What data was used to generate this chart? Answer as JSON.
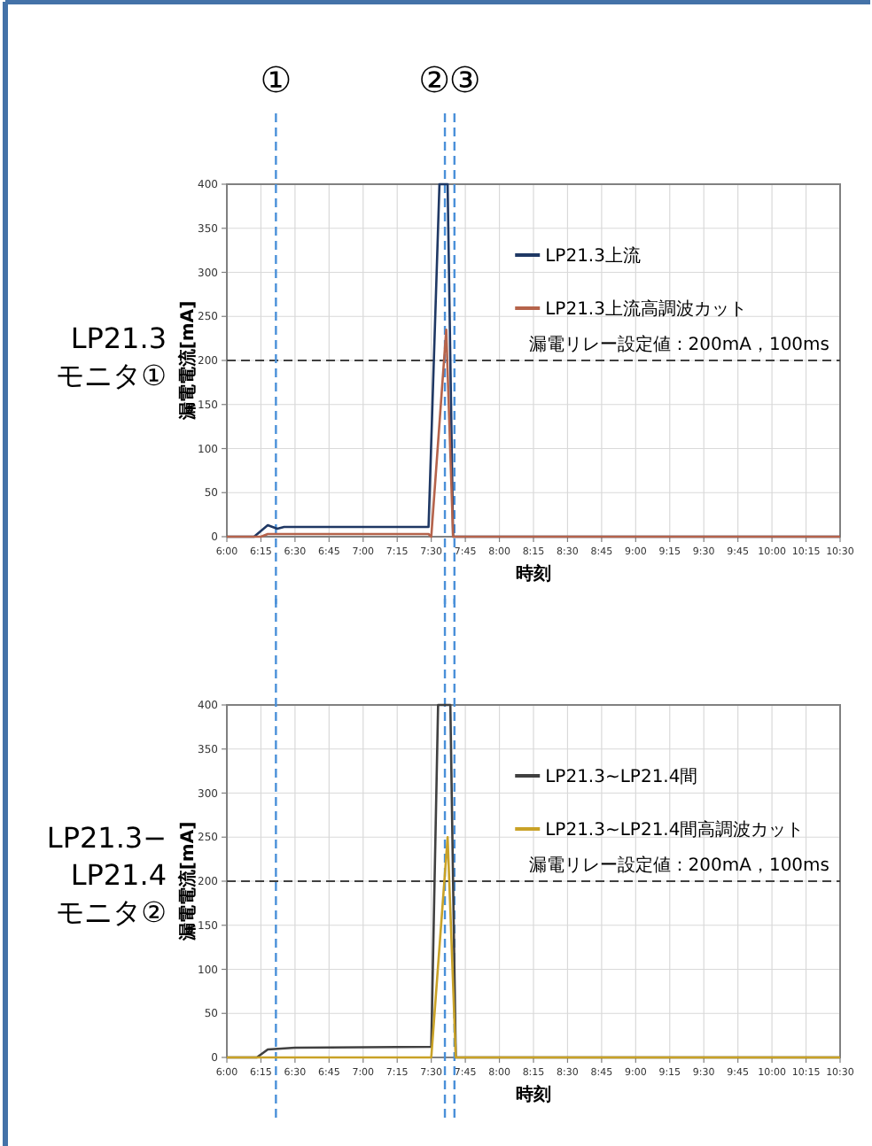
{
  "chart_data": [
    {
      "type": "line",
      "title": "LP21.3\nモニタ①",
      "xlabel": "時刻",
      "ylabel": "漏電電流[mA]",
      "xlim": [
        6,
        10.5
      ],
      "ylim": [
        0,
        400
      ],
      "xticks": [
        {
          "value": 6,
          "label": "6:00"
        },
        {
          "value": 6.25,
          "label": "6:15"
        },
        {
          "value": 6.5,
          "label": "6:30"
        },
        {
          "value": 6.75,
          "label": "6:45"
        },
        {
          "value": 7,
          "label": "7:00"
        },
        {
          "value": 7.25,
          "label": "7:15"
        },
        {
          "value": 7.5,
          "label": "7:30"
        },
        {
          "value": 7.75,
          "label": "7:45"
        },
        {
          "value": 8,
          "label": "8:00"
        },
        {
          "value": 8.25,
          "label": "8:15"
        },
        {
          "value": 8.5,
          "label": "8:30"
        },
        {
          "value": 8.75,
          "label": "8:45"
        },
        {
          "value": 9,
          "label": "9:00"
        },
        {
          "value": 9.25,
          "label": "9:15"
        },
        {
          "value": 9.5,
          "label": "9:30"
        },
        {
          "value": 9.75,
          "label": "9:45"
        },
        {
          "value": 10,
          "label": "10:00"
        },
        {
          "value": 10.25,
          "label": "10:15"
        },
        {
          "value": 10.5,
          "label": "10:30"
        }
      ],
      "yticks": [
        0,
        50,
        100,
        150,
        200,
        250,
        300,
        350,
        400
      ],
      "grid": true,
      "legend": "top right",
      "marker": "none",
      "line_style": "solid",
      "series": [
        {
          "name": "LP21.3上流",
          "color": "#1f3864",
          "x": [
            6,
            6.2,
            6.3,
            6.37,
            6.42,
            7.48,
            7.56,
            7.62,
            7.66,
            10.5
          ],
          "values": [
            0,
            0,
            13,
            9,
            11,
            11,
            400,
            400,
            0,
            0
          ]
        },
        {
          "name": "LP21.3上流高調波カット",
          "color": "#b5634b",
          "x": [
            6,
            6.25,
            6.3,
            7.48,
            7.5,
            7.61,
            7.66,
            10.5
          ],
          "values": [
            0,
            0,
            3,
            3,
            0,
            235,
            0,
            0
          ]
        }
      ],
      "ref_lines": [
        {
          "axis": "y",
          "value": 200,
          "label": "漏電リレー設定値：200mA，100ms",
          "color": "#404040",
          "line_style": "dashed"
        },
        {
          "axis": "x",
          "value": 6.36,
          "label": "①",
          "color": "#4a90d9",
          "line_style": "dashed"
        },
        {
          "axis": "x",
          "value": 7.6,
          "label": "②",
          "color": "#4a90d9",
          "line_style": "dashed"
        },
        {
          "axis": "x",
          "value": 7.67,
          "label": "③",
          "color": "#4a90d9",
          "line_style": "dashed"
        }
      ]
    },
    {
      "type": "line",
      "title": "LP21.3−\nLP21.4\nモニタ②",
      "xlabel": "時刻",
      "ylabel": "漏電電流[mA]",
      "xlim": [
        6,
        10.5
      ],
      "ylim": [
        0,
        400
      ],
      "xticks": [
        {
          "value": 6,
          "label": "6:00"
        },
        {
          "value": 6.25,
          "label": "6:15"
        },
        {
          "value": 6.5,
          "label": "6:30"
        },
        {
          "value": 6.75,
          "label": "6:45"
        },
        {
          "value": 7,
          "label": "7:00"
        },
        {
          "value": 7.25,
          "label": "7:15"
        },
        {
          "value": 7.5,
          "label": "7:30"
        },
        {
          "value": 7.75,
          "label": "7:45"
        },
        {
          "value": 8,
          "label": "8:00"
        },
        {
          "value": 8.25,
          "label": "8:15"
        },
        {
          "value": 8.5,
          "label": "8:30"
        },
        {
          "value": 8.75,
          "label": "8:45"
        },
        {
          "value": 9,
          "label": "9:00"
        },
        {
          "value": 9.25,
          "label": "9:15"
        },
        {
          "value": 9.5,
          "label": "9:30"
        },
        {
          "value": 9.75,
          "label": "9:45"
        },
        {
          "value": 10,
          "label": "10:00"
        },
        {
          "value": 10.25,
          "label": "10:15"
        },
        {
          "value": 10.5,
          "label": "10:30"
        }
      ],
      "yticks": [
        0,
        50,
        100,
        150,
        200,
        250,
        300,
        350,
        400
      ],
      "grid": true,
      "legend": "top right",
      "marker": "none",
      "line_style": "solid",
      "series": [
        {
          "name": "LP21.3~LP21.4間",
          "color": "#404040",
          "x": [
            6,
            6.22,
            6.3,
            6.5,
            7.5,
            7.55,
            7.64,
            7.68,
            10.5
          ],
          "values": [
            0,
            0,
            9,
            11,
            12,
            400,
            400,
            0,
            0
          ]
        },
        {
          "name": "LP21.3~LP21.4間高調波カット",
          "color": "#c9a227",
          "x": [
            6,
            7.5,
            7.62,
            7.68,
            10.5
          ],
          "values": [
            0,
            0,
            250,
            0,
            0
          ]
        }
      ],
      "ref_lines": [
        {
          "axis": "y",
          "value": 200,
          "label": "漏電リレー設定値：200mA，100ms",
          "color": "#404040",
          "line_style": "dashed"
        },
        {
          "axis": "x",
          "value": 6.36,
          "color": "#4a90d9",
          "line_style": "dashed"
        },
        {
          "axis": "x",
          "value": 7.6,
          "color": "#4a90d9",
          "line_style": "dashed"
        },
        {
          "axis": "x",
          "value": 7.67,
          "color": "#4a90d9",
          "line_style": "dashed"
        }
      ]
    }
  ]
}
